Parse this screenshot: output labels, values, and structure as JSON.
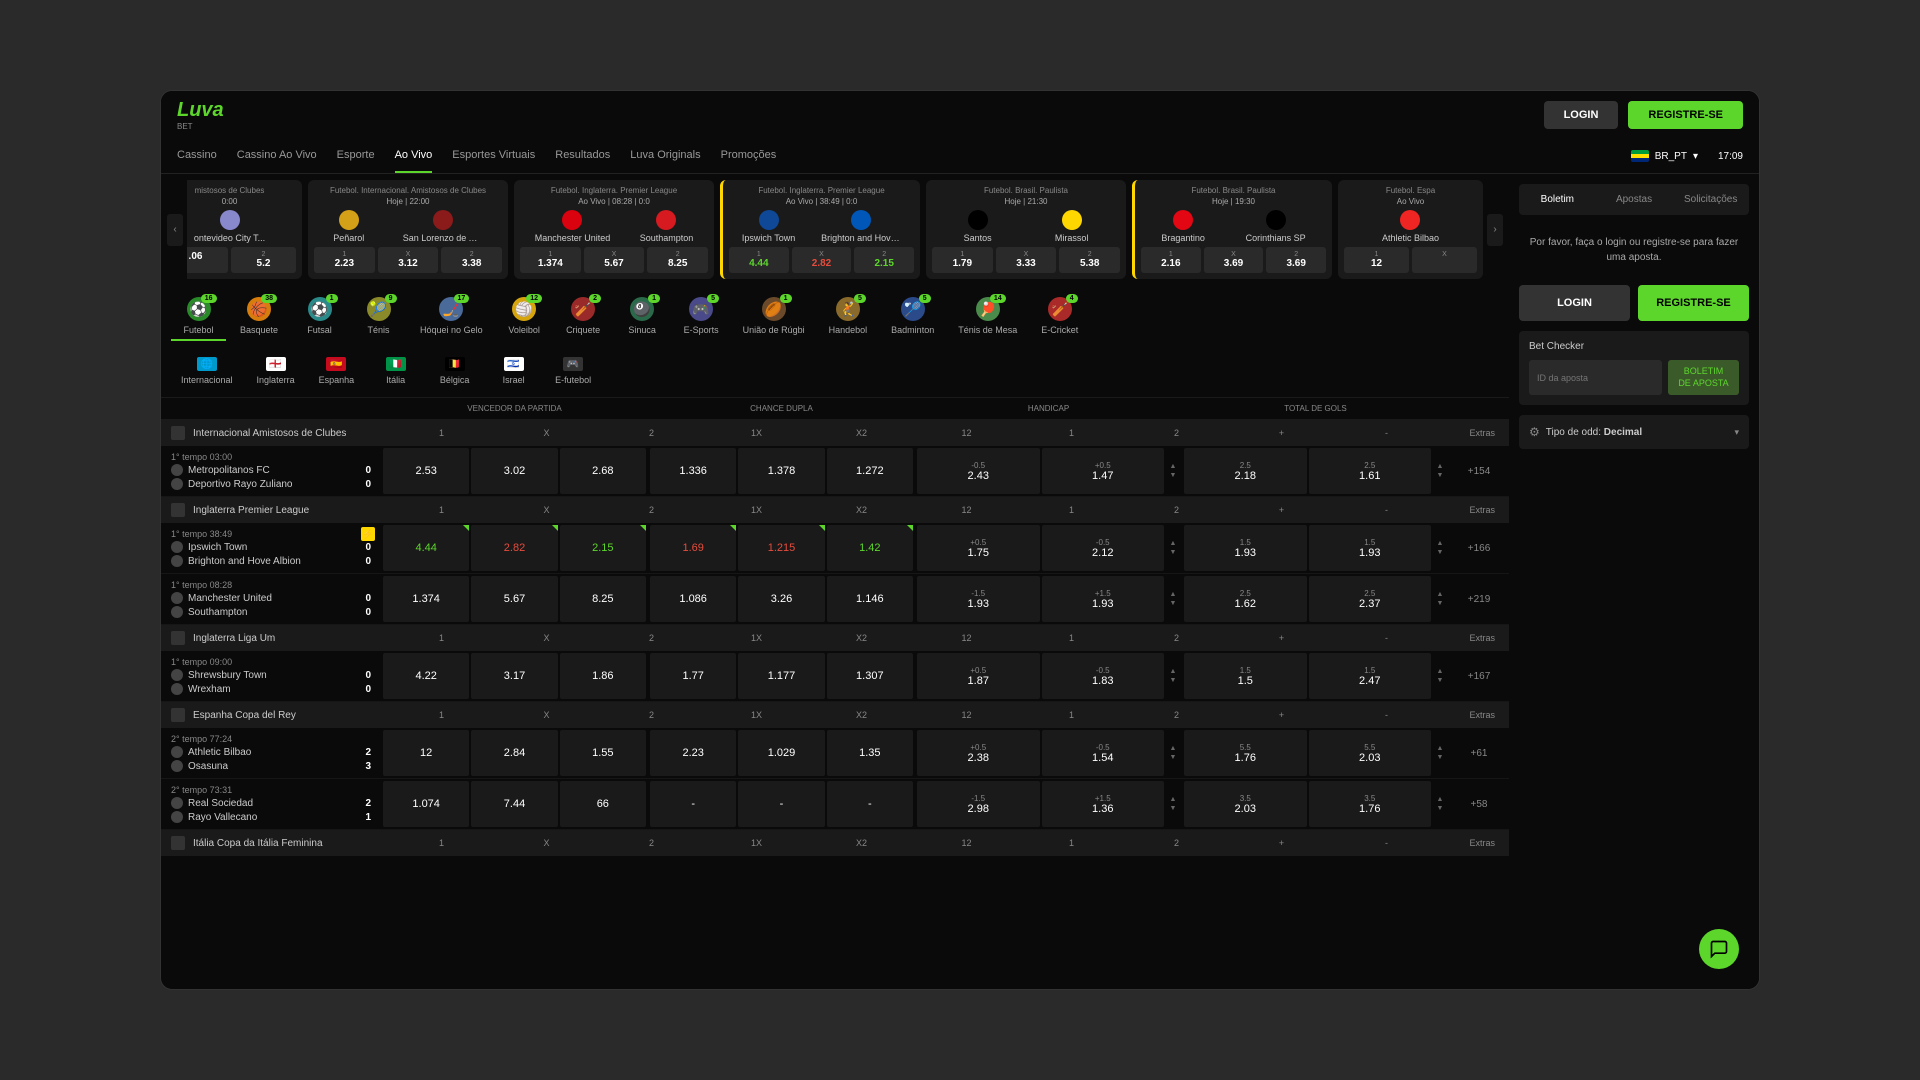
{
  "header": {
    "logo": "Luva",
    "logo_sub": "BET",
    "login": "LOGIN",
    "register": "REGISTRE-SE",
    "lang": "BR_PT",
    "time": "17:09"
  },
  "nav": [
    "Cassino",
    "Cassino Ao Vivo",
    "Esporte",
    "Ao Vivo",
    "Esportes Virtuais",
    "Resultados",
    "Luva Originals",
    "Promoções"
  ],
  "nav_active": 3,
  "carousel": [
    {
      "partial": "left",
      "league": "mistosos de Clubes",
      "time": "0:00",
      "teams": [
        {
          "name": "ontevideo City T...",
          "logo_bg": "#88c"
        }
      ],
      "odds": [
        {
          "l": "",
          "v": ".06"
        },
        {
          "l": "2",
          "v": "5.2"
        }
      ]
    },
    {
      "league": "Futebol. Internacional. Amistosos de Clubes",
      "time": "Hoje | 22:00",
      "teams": [
        {
          "name": "Peñarol",
          "logo_bg": "#d4a017"
        },
        {
          "name": "San Lorenzo de Al...",
          "logo_bg": "#8b1a1a"
        }
      ],
      "odds": [
        {
          "l": "1",
          "v": "2.23"
        },
        {
          "l": "X",
          "v": "3.12"
        },
        {
          "l": "2",
          "v": "3.38"
        }
      ]
    },
    {
      "league": "Futebol. Inglaterra. Premier League",
      "time": "Ao Vivo | 08:28 | 0:0",
      "teams": [
        {
          "name": "Manchester United",
          "logo_bg": "#da020e"
        },
        {
          "name": "Southampton",
          "logo_bg": "#d71920"
        }
      ],
      "odds": [
        {
          "l": "1",
          "v": "1.374"
        },
        {
          "l": "X",
          "v": "5.67"
        },
        {
          "l": "2",
          "v": "8.25"
        }
      ]
    },
    {
      "highlighted": true,
      "league": "Futebol. Inglaterra. Premier League",
      "time": "Ao Vivo | 38:49 | 0:0",
      "teams": [
        {
          "name": "Ipswich Town",
          "logo_bg": "#0e4896"
        },
        {
          "name": "Brighton and Hove...",
          "logo_bg": "#0057b8"
        }
      ],
      "odds": [
        {
          "l": "1",
          "v": "4.44",
          "cls": "green"
        },
        {
          "l": "X",
          "v": "2.82",
          "cls": "red"
        },
        {
          "l": "2",
          "v": "2.15",
          "cls": "green"
        }
      ]
    },
    {
      "league": "Futebol. Brasil. Paulista",
      "time": "Hoje | 21:30",
      "teams": [
        {
          "name": "Santos",
          "logo_bg": "#000"
        },
        {
          "name": "Mirassol",
          "logo_bg": "#ffd700"
        }
      ],
      "odds": [
        {
          "l": "1",
          "v": "1.79"
        },
        {
          "l": "X",
          "v": "3.33"
        },
        {
          "l": "2",
          "v": "5.38"
        }
      ]
    },
    {
      "highlighted": true,
      "league": "Futebol. Brasil. Paulista",
      "time": "Hoje | 19:30",
      "teams": [
        {
          "name": "Bragantino",
          "logo_bg": "#e30613"
        },
        {
          "name": "Corinthians SP",
          "logo_bg": "#000"
        }
      ],
      "odds": [
        {
          "l": "1",
          "v": "2.16"
        },
        {
          "l": "X",
          "v": "3.69"
        },
        {
          "l": "2",
          "v": "3.69"
        }
      ]
    },
    {
      "partial": "right",
      "league": "Futebol. Espa",
      "time": "Ao Vivo",
      "teams": [
        {
          "name": "Athletic Bilbao",
          "logo_bg": "#ee2523"
        }
      ],
      "odds": [
        {
          "l": "1",
          "v": "12"
        },
        {
          "l": "X",
          "v": ""
        }
      ]
    }
  ],
  "sports": [
    {
      "label": "Futebol",
      "icon": "⚽",
      "bg": "#2a8a2a",
      "badge": "16",
      "active": true
    },
    {
      "label": "Basquete",
      "icon": "🏀",
      "bg": "#d67d0e",
      "badge": "38"
    },
    {
      "label": "Futsal",
      "icon": "⚽",
      "bg": "#2a8a8a",
      "badge": "1"
    },
    {
      "label": "Ténis",
      "icon": "🎾",
      "bg": "#8a8a2a",
      "badge": "9"
    },
    {
      "label": "Hóquei no Gelo",
      "icon": "🏒",
      "bg": "#4a6a9a",
      "badge": "17"
    },
    {
      "label": "Voleibol",
      "icon": "🏐",
      "bg": "#d6a50e",
      "badge": "12"
    },
    {
      "label": "Criquete",
      "icon": "🏏",
      "bg": "#9a2a2a",
      "badge": "2"
    },
    {
      "label": "Sinuca",
      "icon": "🎱",
      "bg": "#2a6a4a",
      "badge": "1"
    },
    {
      "label": "E-Sports",
      "icon": "🎮",
      "bg": "#4a4a8a",
      "badge": "5"
    },
    {
      "label": "União de Rúgbi",
      "icon": "🏉",
      "bg": "#6a4a2a",
      "badge": "1"
    },
    {
      "label": "Handebol",
      "icon": "🤾",
      "bg": "#8a6a2a",
      "badge": "5"
    },
    {
      "label": "Badminton",
      "icon": "🏸",
      "bg": "#2a4a8a",
      "badge": "5"
    },
    {
      "label": "Ténis de Mesa",
      "icon": "🏓",
      "bg": "#4a8a4a",
      "badge": "14"
    },
    {
      "label": "E-Cricket",
      "icon": "🏏",
      "bg": "#aa2a2a",
      "badge": "4"
    }
  ],
  "countries": [
    {
      "label": "Internacional",
      "flag_bg": "#0099cc",
      "emoji": "🌐"
    },
    {
      "label": "Inglaterra",
      "flag_bg": "#fff",
      "emoji": "🏴󠁧󠁢󠁥󠁮󠁧󠁿"
    },
    {
      "label": "Espanha",
      "flag_bg": "#c60b1e",
      "emoji": "🇪🇸"
    },
    {
      "label": "Itália",
      "flag_bg": "#009246",
      "emoji": "🇮🇹"
    },
    {
      "label": "Bélgica",
      "flag_bg": "#000",
      "emoji": "🇧🇪"
    },
    {
      "label": "Israel",
      "flag_bg": "#fff",
      "emoji": "🇮🇱"
    },
    {
      "label": "E-futebol",
      "flag_bg": "#333",
      "emoji": "🎮"
    }
  ],
  "odds_groups": [
    "VENCEDOR DA PARTIDA",
    "CHANCE DUPLA",
    "HANDICAP",
    "TOTAL DE GOLS"
  ],
  "col_labels": {
    "winner": [
      "1",
      "X",
      "2"
    ],
    "dc": [
      "1X",
      "X2",
      "12"
    ],
    "h": [
      "1",
      "2"
    ],
    "tg": [
      "+",
      "-"
    ],
    "extras": "Extras"
  },
  "leagues": [
    {
      "name": "Internacional Amistosos de Clubes",
      "matches": [
        {
          "period": "1° tempo 03:00",
          "team1": "Metropolitanos FC",
          "score1": "0",
          "team2": "Deportivo Rayo Zuliano",
          "score2": "0",
          "winner": [
            "2.53",
            "3.02",
            "2.68"
          ],
          "dc": [
            "1.336",
            "1.378",
            "1.272"
          ],
          "h": [
            {
              "l": "-0.5",
              "v": "2.43"
            },
            {
              "l": "+0.5",
              "v": "1.47"
            }
          ],
          "tg": [
            {
              "l": "2.5",
              "v": "2.18"
            },
            {
              "l": "2.5",
              "v": "1.61"
            }
          ],
          "extras": "+154"
        }
      ]
    },
    {
      "name": "Inglaterra Premier League",
      "matches": [
        {
          "period": "1° tempo 38:49",
          "lightning": true,
          "team1": "Ipswich Town",
          "score1": "0",
          "team2": "Brighton and Hove Albion",
          "score2": "0",
          "winner": [
            "4.44",
            "2.82",
            "2.15"
          ],
          "winner_cls": [
            "green",
            "red",
            "green"
          ],
          "corners": true,
          "dc": [
            "1.69",
            "1.215",
            "1.42"
          ],
          "dc_cls": [
            "red",
            "red",
            "green"
          ],
          "h": [
            {
              "l": "+0.5",
              "v": "1.75"
            },
            {
              "l": "-0.5",
              "v": "2.12"
            }
          ],
          "tg": [
            {
              "l": "1.5",
              "v": "1.93"
            },
            {
              "l": "1.5",
              "v": "1.93"
            }
          ],
          "extras": "+166"
        },
        {
          "period": "1° tempo 08:28",
          "team1": "Manchester United",
          "score1": "0",
          "team2": "Southampton",
          "score2": "0",
          "winner": [
            "1.374",
            "5.67",
            "8.25"
          ],
          "dc": [
            "1.086",
            "3.26",
            "1.146"
          ],
          "h": [
            {
              "l": "-1.5",
              "v": "1.93"
            },
            {
              "l": "+1.5",
              "v": "1.93"
            }
          ],
          "tg": [
            {
              "l": "2.5",
              "v": "1.62"
            },
            {
              "l": "2.5",
              "v": "2.37"
            }
          ],
          "extras": "+219"
        }
      ]
    },
    {
      "name": "Inglaterra Liga Um",
      "matches": [
        {
          "period": "1° tempo 09:00",
          "team1": "Shrewsbury Town",
          "score1": "0",
          "team2": "Wrexham",
          "score2": "0",
          "winner": [
            "4.22",
            "3.17",
            "1.86"
          ],
          "dc": [
            "1.77",
            "1.177",
            "1.307"
          ],
          "h": [
            {
              "l": "+0.5",
              "v": "1.87"
            },
            {
              "l": "-0.5",
              "v": "1.83"
            }
          ],
          "tg": [
            {
              "l": "1.5",
              "v": "1.5"
            },
            {
              "l": "1.5",
              "v": "2.47"
            }
          ],
          "extras": "+167"
        }
      ]
    },
    {
      "name": "Espanha Copa del Rey",
      "matches": [
        {
          "period": "2° tempo 77:24",
          "team1": "Athletic Bilbao",
          "score1": "2",
          "team2": "Osasuna",
          "score2": "3",
          "winner": [
            "12",
            "2.84",
            "1.55"
          ],
          "dc": [
            "2.23",
            "1.029",
            "1.35"
          ],
          "h": [
            {
              "l": "+0.5",
              "v": "2.38"
            },
            {
              "l": "-0.5",
              "v": "1.54"
            }
          ],
          "tg": [
            {
              "l": "5.5",
              "v": "1.76"
            },
            {
              "l": "5.5",
              "v": "2.03"
            }
          ],
          "extras": "+61"
        },
        {
          "period": "2° tempo 73:31",
          "team1": "Real Sociedad",
          "score1": "2",
          "team2": "Rayo Vallecano",
          "score2": "1",
          "winner": [
            "1.074",
            "7.44",
            "66"
          ],
          "dc": [
            "-",
            "-",
            "-"
          ],
          "h": [
            {
              "l": "-1.5",
              "v": "2.98"
            },
            {
              "l": "+1.5",
              "v": "1.36"
            }
          ],
          "tg": [
            {
              "l": "3.5",
              "v": "2.03"
            },
            {
              "l": "3.5",
              "v": "1.76"
            }
          ],
          "extras": "+58"
        }
      ]
    },
    {
      "name": "Itália Copa da Itália Feminina",
      "matches": []
    }
  ],
  "sidebar": {
    "tabs": [
      "Boletim",
      "Apostas",
      "Solicitações"
    ],
    "tab_active": 0,
    "prompt": "Por favor, faça o login ou registre-se para fazer uma aposta.",
    "login": "LOGIN",
    "register": "REGISTRE-SE",
    "checker_title": "Bet Checker",
    "checker_placeholder": "ID da aposta",
    "checker_btn": "BOLETIM DE APOSTA",
    "odds_type_label": "Tipo de odd:",
    "odds_type_value": "Decimal"
  }
}
